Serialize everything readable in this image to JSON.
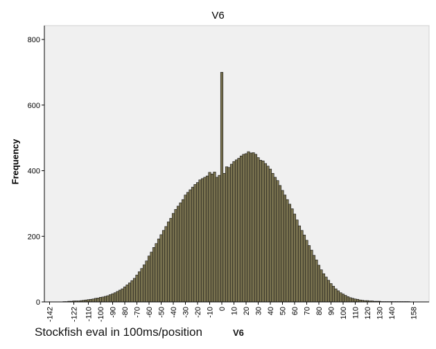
{
  "chart_data": {
    "type": "bar",
    "title": "V6",
    "xlabel": "Stockfish eval in 100ms/position",
    "xlabel_suffix": "V6",
    "ylabel": "Frequency",
    "ylim": [
      0,
      800
    ],
    "yticks": [
      0,
      200,
      400,
      600,
      800
    ],
    "xlim": [
      -147,
      164
    ],
    "xticks": [
      -142,
      -122,
      -110,
      -100,
      -90,
      -80,
      -70,
      -60,
      -50,
      -40,
      -30,
      -20,
      -10,
      0,
      10,
      20,
      30,
      40,
      50,
      60,
      70,
      80,
      90,
      100,
      110,
      120,
      130,
      140,
      158
    ],
    "grid": false,
    "categories": [
      -130,
      -128,
      -126,
      -124,
      -122,
      -120,
      -118,
      -116,
      -114,
      -112,
      -110,
      -108,
      -106,
      -104,
      -102,
      -100,
      -98,
      -96,
      -94,
      -92,
      -90,
      -88,
      -86,
      -84,
      -82,
      -80,
      -78,
      -76,
      -74,
      -72,
      -70,
      -68,
      -66,
      -64,
      -62,
      -60,
      -58,
      -56,
      -54,
      -52,
      -50,
      -48,
      -46,
      -44,
      -42,
      -40,
      -38,
      -36,
      -34,
      -32,
      -30,
      -28,
      -26,
      -24,
      -22,
      -20,
      -18,
      -16,
      -14,
      -12,
      -10,
      -8,
      -6,
      -4,
      -2,
      0,
      2,
      4,
      6,
      8,
      10,
      12,
      14,
      16,
      18,
      20,
      22,
      24,
      26,
      28,
      30,
      32,
      34,
      36,
      38,
      40,
      42,
      44,
      46,
      48,
      50,
      52,
      54,
      56,
      58,
      60,
      62,
      64,
      66,
      68,
      70,
      72,
      74,
      76,
      78,
      80,
      82,
      84,
      86,
      88,
      90,
      92,
      94,
      96,
      98,
      100,
      102,
      104,
      106,
      108,
      110,
      112,
      114,
      116,
      118,
      120,
      122,
      124,
      126,
      128,
      130,
      132,
      134,
      136,
      138,
      140,
      142,
      144,
      146,
      148,
      150,
      152,
      154
    ],
    "values": [
      1,
      1,
      2,
      2,
      3,
      3,
      3,
      4,
      5,
      6,
      7,
      8,
      9,
      11,
      12,
      14,
      15,
      17,
      19,
      22,
      25,
      28,
      32,
      36,
      40,
      46,
      52,
      58,
      65,
      72,
      82,
      92,
      102,
      113,
      125,
      140,
      152,
      166,
      178,
      192,
      205,
      218,
      230,
      244,
      255,
      270,
      282,
      292,
      302,
      312,
      326,
      334,
      342,
      350,
      358,
      364,
      372,
      376,
      380,
      384,
      395,
      390,
      396,
      380,
      386,
      700,
      392,
      412,
      410,
      420,
      428,
      433,
      438,
      445,
      450,
      452,
      458,
      454,
      455,
      450,
      440,
      432,
      430,
      422,
      414,
      405,
      392,
      380,
      370,
      355,
      340,
      326,
      312,
      298,
      284,
      268,
      250,
      232,
      218,
      204,
      188,
      172,
      158,
      142,
      128,
      112,
      98,
      86,
      76,
      66,
      56,
      48,
      40,
      34,
      28,
      24,
      20,
      16,
      13,
      11,
      9,
      8,
      6,
      5,
      4,
      4,
      3,
      3,
      2,
      2,
      2,
      1,
      1,
      1,
      1,
      1,
      1,
      1,
      1,
      1,
      1,
      1,
      1
    ]
  }
}
